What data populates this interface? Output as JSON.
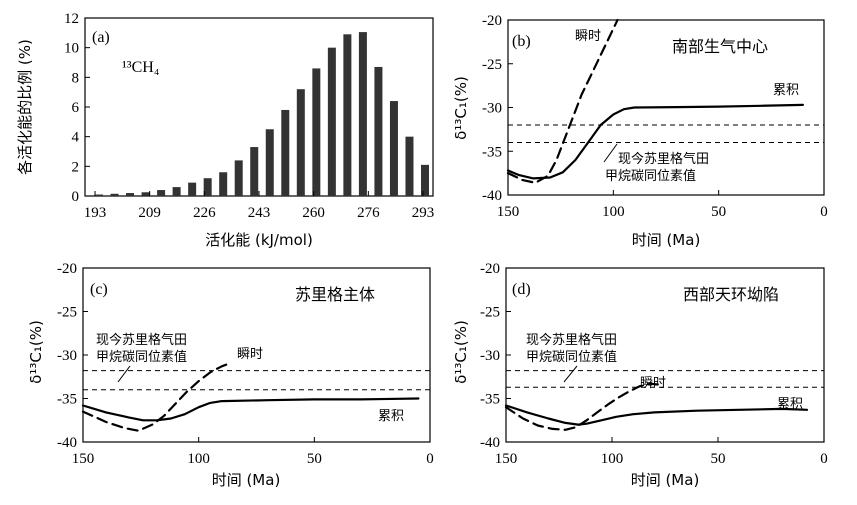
{
  "chart_data": [
    {
      "id": "a",
      "type": "bar",
      "panel_label": "(a)",
      "species_label": "¹³CH₄",
      "xlabel": "活化能 (kJ/mol)",
      "ylabel": "各活化能的比例 (%)",
      "ylim": [
        0,
        12
      ],
      "yticks": [
        0,
        2,
        4,
        6,
        8,
        10,
        12
      ],
      "xticks": [
        "193",
        "209",
        "226",
        "243",
        "260",
        "276",
        "293"
      ],
      "values": [
        0.1,
        0.15,
        0.2,
        0.25,
        0.4,
        0.6,
        0.9,
        1.2,
        1.6,
        2.4,
        3.3,
        4.5,
        5.8,
        7.2,
        8.6,
        10.0,
        10.9,
        11.05,
        8.7,
        6.4,
        4.0,
        2.1
      ],
      "color": "#333333"
    },
    {
      "id": "b",
      "type": "line",
      "panel_label": "(b)",
      "title": "南部生气中心",
      "xlabel": "时间 (Ma)",
      "ylabel": "δ¹³C₁(%)",
      "xlim": [
        150,
        0
      ],
      "ylim": [
        -40,
        -20
      ],
      "xticks": [
        "150",
        "100",
        "50",
        "0"
      ],
      "yticks": [
        "-20",
        "-25",
        "-30",
        "-35",
        "-40"
      ],
      "ref_lines": [
        -32,
        -34
      ],
      "ref_label": [
        "现今苏里格气田",
        "甲烷碳同位素值"
      ],
      "series": [
        {
          "name": "累积",
          "style": "solid",
          "x": [
            150,
            145,
            138,
            130,
            124,
            118,
            112,
            106,
            100,
            95,
            90,
            70,
            50,
            30,
            10
          ],
          "y": [
            -37.2,
            -37.7,
            -38.1,
            -38.0,
            -37.4,
            -36.0,
            -34.0,
            -32.0,
            -30.8,
            -30.2,
            -30.0,
            -29.95,
            -29.9,
            -29.8,
            -29.7
          ]
        },
        {
          "name": "瞬时",
          "style": "dashed",
          "x": [
            150,
            143,
            137,
            131,
            127,
            123,
            119,
            115,
            110,
            106,
            103,
            100,
            98
          ],
          "y": [
            -37.5,
            -38.3,
            -38.6,
            -37.8,
            -36.0,
            -33.5,
            -31.0,
            -28.5,
            -26.0,
            -24.0,
            -22.5,
            -21.0,
            -20.0
          ]
        }
      ]
    },
    {
      "id": "c",
      "type": "line",
      "panel_label": "(c)",
      "title": "苏里格主体",
      "xlabel": "时间 (Ma)",
      "ylabel": "δ¹³C₁(%)",
      "xlim": [
        150,
        0
      ],
      "ylim": [
        -40,
        -20
      ],
      "xticks": [
        "150",
        "100",
        "50",
        "0"
      ],
      "yticks": [
        "-20",
        "-25",
        "-30",
        "-35",
        "-40"
      ],
      "ref_lines": [
        -31.8,
        -34.0
      ],
      "ref_label": [
        "现今苏里格气田",
        "甲烷碳同位素值"
      ],
      "series": [
        {
          "name": "累积",
          "style": "solid",
          "x": [
            150,
            140,
            130,
            124,
            118,
            112,
            106,
            100,
            95,
            90,
            70,
            50,
            30,
            5
          ],
          "y": [
            -35.8,
            -36.6,
            -37.2,
            -37.5,
            -37.5,
            -37.3,
            -36.8,
            -36.0,
            -35.5,
            -35.3,
            -35.2,
            -35.1,
            -35.1,
            -35.0
          ]
        },
        {
          "name": "瞬时",
          "style": "dashed",
          "x": [
            150,
            140,
            132,
            126,
            120,
            115,
            110,
            105,
            100,
            95,
            90,
            86
          ],
          "y": [
            -36.5,
            -37.7,
            -38.4,
            -38.7,
            -38.0,
            -37.0,
            -35.6,
            -34.2,
            -33.0,
            -32.0,
            -31.3,
            -30.9
          ]
        }
      ]
    },
    {
      "id": "d",
      "type": "line",
      "panel_label": "(d)",
      "title": "西部天环坳陷",
      "xlabel": "时间 (Ma)",
      "ylabel": "δ¹³C₁(%)",
      "xlim": [
        150,
        0
      ],
      "ylim": [
        -40,
        -20
      ],
      "xticks": [
        "150",
        "100",
        "50",
        "0"
      ],
      "yticks": [
        "-20",
        "-25",
        "-30",
        "-35",
        "-40"
      ],
      "ref_lines": [
        -31.8,
        -33.7
      ],
      "ref_label": [
        "现今苏里格气田",
        "甲烷碳同位素值"
      ],
      "series": [
        {
          "name": "累积",
          "style": "solid",
          "x": [
            150,
            140,
            130,
            122,
            116,
            112,
            105,
            98,
            90,
            80,
            60,
            40,
            20,
            8
          ],
          "y": [
            -35.8,
            -36.6,
            -37.3,
            -37.8,
            -38.0,
            -37.9,
            -37.5,
            -37.1,
            -36.8,
            -36.6,
            -36.4,
            -36.3,
            -36.2,
            -36.3
          ]
        },
        {
          "name": "瞬时",
          "style": "dashed",
          "x": [
            150,
            142,
            135,
            128,
            122,
            117,
            112,
            107,
            102,
            97,
            92,
            87,
            82,
            78
          ],
          "y": [
            -36.0,
            -37.3,
            -38.1,
            -38.5,
            -38.6,
            -38.3,
            -37.5,
            -36.6,
            -35.7,
            -34.9,
            -34.2,
            -33.6,
            -33.3,
            -33.4
          ]
        }
      ]
    }
  ],
  "labels": {
    "accum": "累积",
    "instant": "瞬时"
  }
}
